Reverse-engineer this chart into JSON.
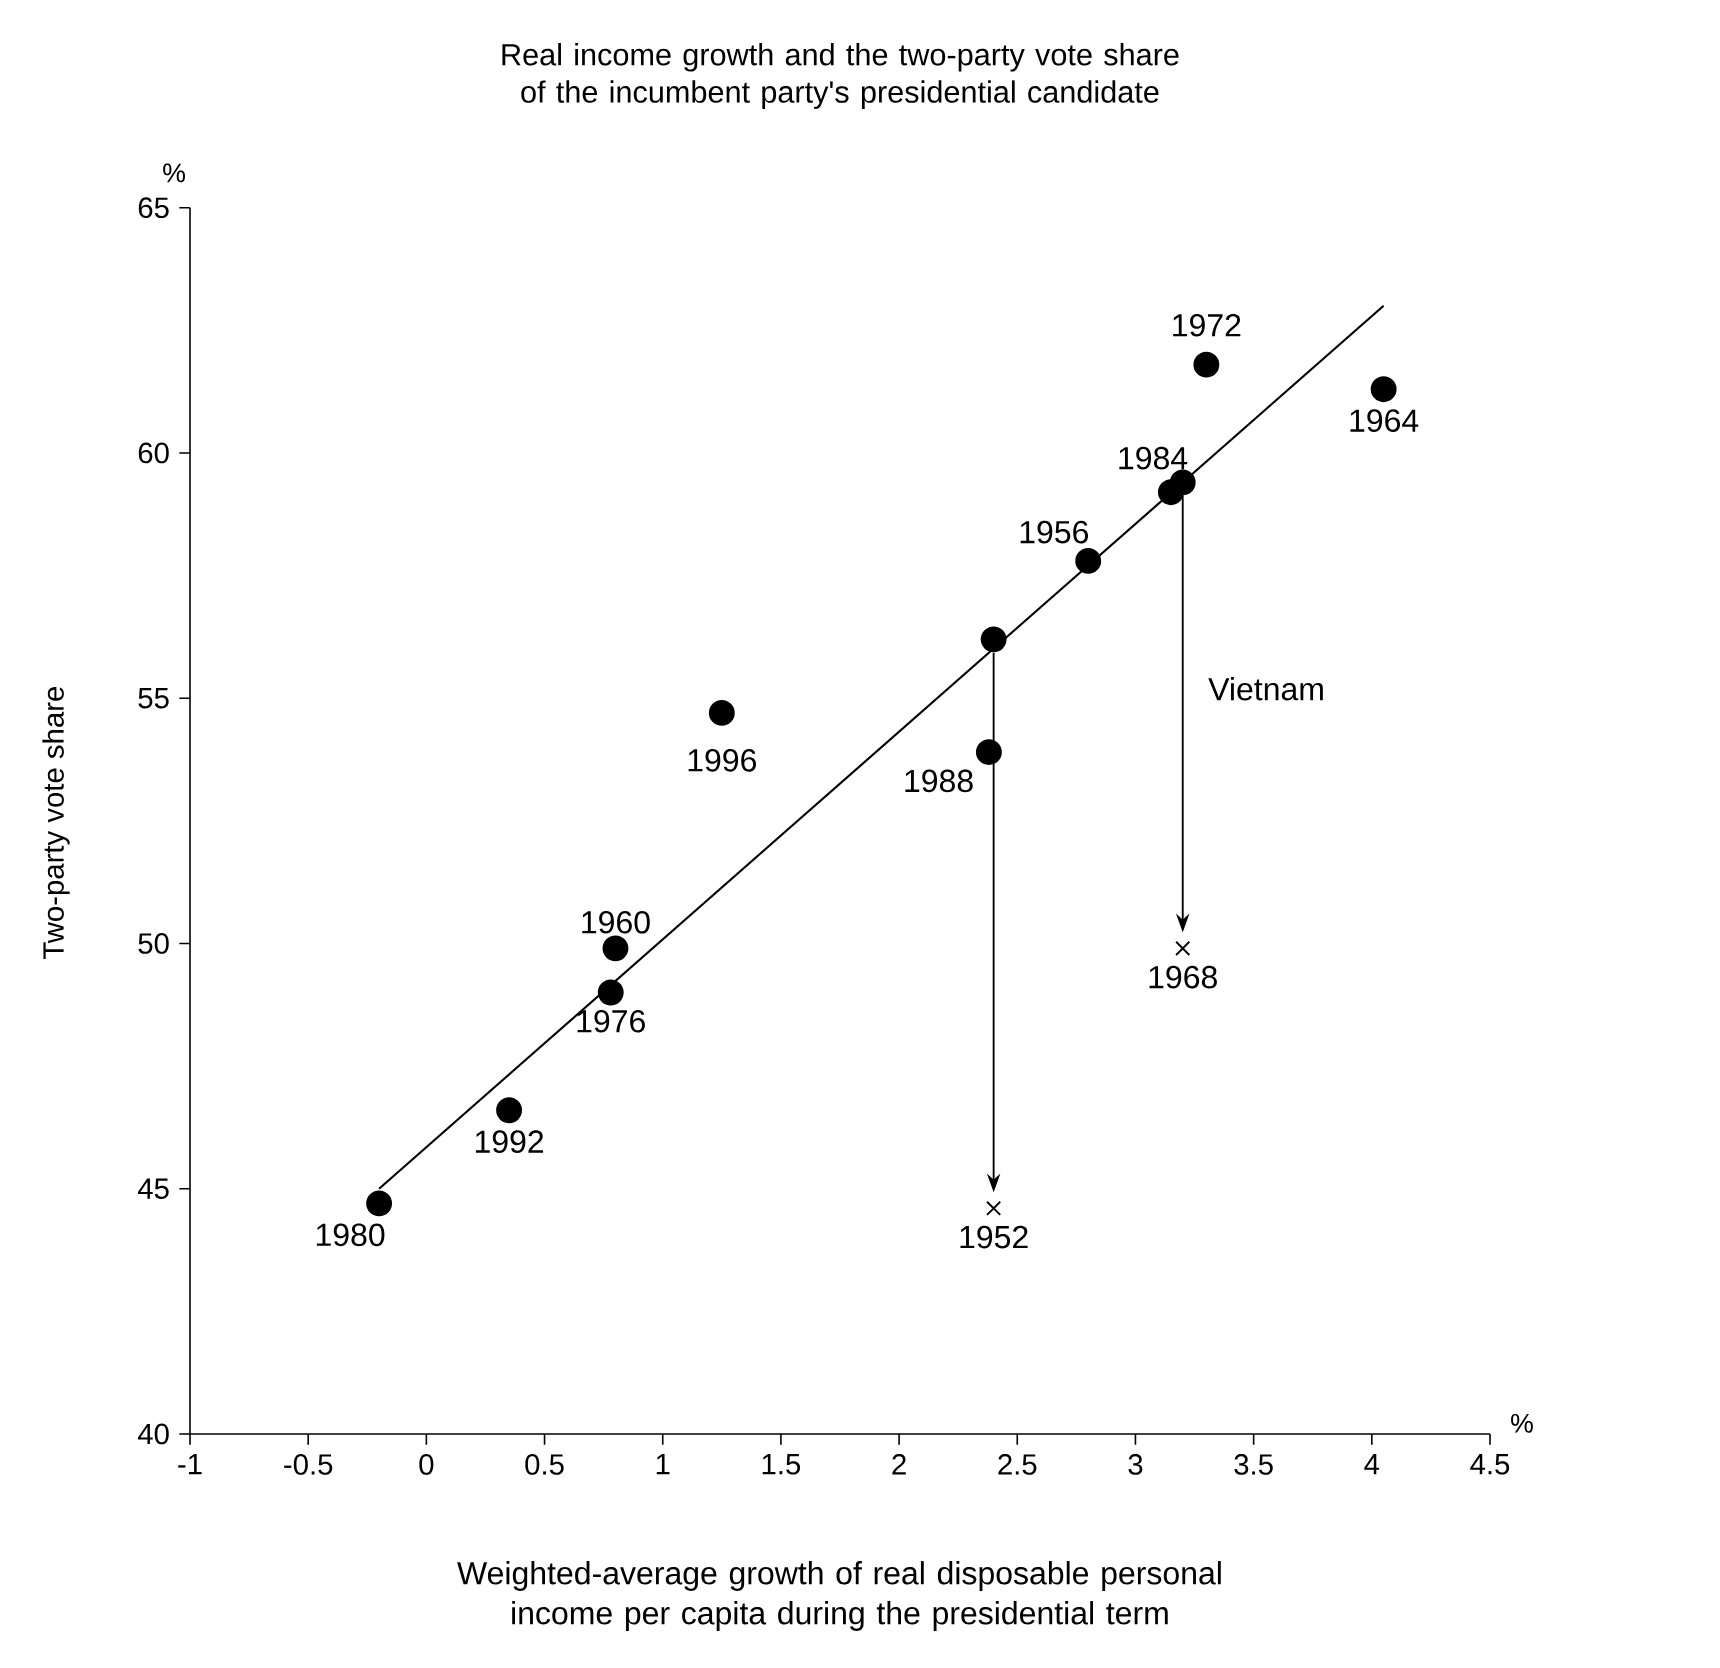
{
  "chart_data": {
    "type": "scatter",
    "title": "Real income growth and the two-party vote share of the incumbent party's presidential candidate",
    "xlabel": "Weighted-average growth of real disposable personal income per capita during the presidential term",
    "ylabel": "Two-party vote share",
    "xlim": [
      -1,
      4.5
    ],
    "xticks": [
      -1,
      -0.5,
      0,
      0.5,
      1,
      1.5,
      2,
      2.5,
      3,
      3.5,
      4,
      4.5
    ],
    "ylim": [
      40,
      65
    ],
    "yticks": [
      40,
      45,
      50,
      55,
      60,
      65
    ],
    "grid": false,
    "series": [
      {
        "marker": "circle",
        "color": "#000000",
        "x": [
          2.4,
          2.8,
          0.8,
          4.05,
          3.2,
          3.3,
          0.78,
          -0.2,
          3.15,
          2.38,
          0.35,
          1.25
        ],
        "values": [
          56.2,
          57.8,
          49.9,
          61.3,
          59.4,
          61.8,
          49.0,
          44.7,
          59.2,
          53.9,
          46.6,
          54.7
        ]
      },
      {
        "marker": "cross",
        "color": "#000000",
        "x": [
          2.4,
          3.2
        ],
        "values": [
          44.6,
          49.9
        ]
      },
      {
        "type": "line",
        "marker": "none",
        "color": "#000000",
        "x": [
          -0.2,
          4.05
        ],
        "values": [
          45.0,
          63.0
        ]
      }
    ],
    "annotations": [
      {
        "text": "1952",
        "x": 2.4,
        "y": 44.6
      },
      {
        "text": "1956",
        "x": 2.8,
        "y": 57.8
      },
      {
        "text": "1960",
        "x": 0.8,
        "y": 49.9
      },
      {
        "text": "1964",
        "x": 4.05,
        "y": 61.3
      },
      {
        "text": "1968",
        "x": 3.2,
        "y": 49.9
      },
      {
        "text": "1972",
        "x": 3.3,
        "y": 61.8
      },
      {
        "text": "1976",
        "x": 0.78,
        "y": 49.0
      },
      {
        "text": "1980",
        "x": -0.2,
        "y": 44.7
      },
      {
        "text": "1984",
        "x": 3.15,
        "y": 59.2
      },
      {
        "text": "1988",
        "x": 2.38,
        "y": 53.9
      },
      {
        "text": "1992",
        "x": 0.35,
        "y": 46.6
      },
      {
        "text": "1996",
        "x": 1.25,
        "y": 54.7
      },
      "Vietnam",
      "%",
      "%"
    ]
  }
}
